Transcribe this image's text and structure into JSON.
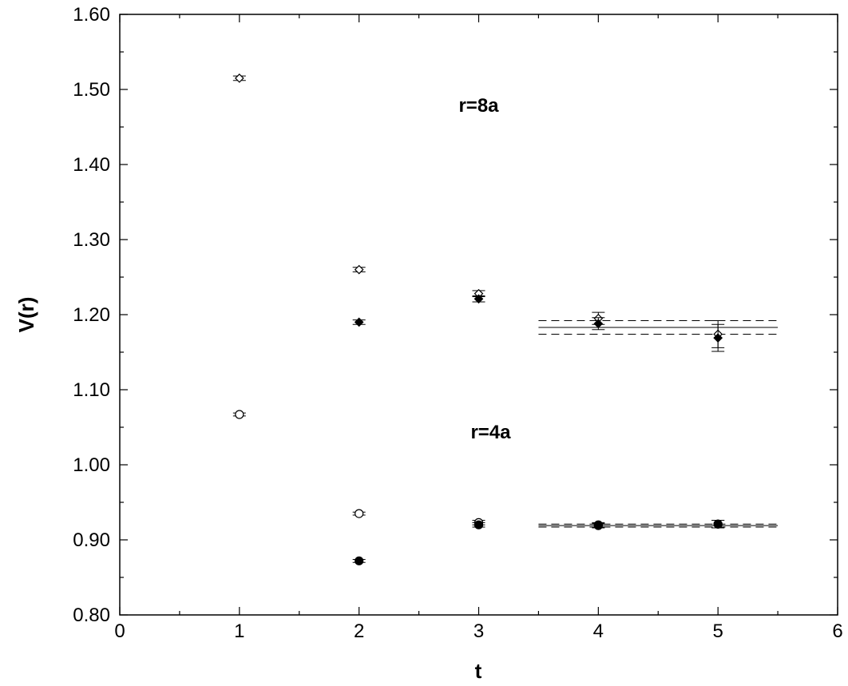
{
  "chart_data": {
    "type": "scatter",
    "title": "",
    "xlabel": "t",
    "ylabel": "V(r)",
    "xlim": [
      0,
      6
    ],
    "ylim": [
      0.8,
      1.6
    ],
    "x_ticks": [
      "0",
      "1",
      "2",
      "3",
      "4",
      "5",
      "6"
    ],
    "y_ticks": [
      "0.80",
      "0.90",
      "1.00",
      "1.10",
      "1.20",
      "1.30",
      "1.40",
      "1.50",
      "1.60"
    ],
    "grid": false,
    "legend": "none",
    "annotations": [
      {
        "text": "r=8a",
        "x": 3.0,
        "y": 1.47
      },
      {
        "text": "r=4a",
        "x": 3.1,
        "y": 1.035
      }
    ],
    "series": [
      {
        "marker": "diamond-open",
        "points": [
          {
            "x": 1,
            "y": 1.515,
            "err": 0.003
          },
          {
            "x": 2,
            "y": 1.26,
            "err": 0.003
          },
          {
            "x": 3,
            "y": 1.228,
            "err": 0.004
          },
          {
            "x": 4,
            "y": 1.195,
            "err": 0.008
          },
          {
            "x": 5,
            "y": 1.174,
            "err": 0.018
          }
        ]
      },
      {
        "marker": "diamond-filled",
        "points": [
          {
            "x": 2,
            "y": 1.19,
            "err": 0.003
          },
          {
            "x": 3,
            "y": 1.221,
            "err": 0.004
          },
          {
            "x": 4,
            "y": 1.188,
            "err": 0.008
          },
          {
            "x": 5,
            "y": 1.169,
            "err": 0.018
          }
        ]
      },
      {
        "marker": "circle-open",
        "points": [
          {
            "x": 1,
            "y": 1.067,
            "err": 0.002
          },
          {
            "x": 2,
            "y": 0.935,
            "err": 0.002
          },
          {
            "x": 3,
            "y": 0.923,
            "err": 0.003
          },
          {
            "x": 4,
            "y": 0.92,
            "err": 0.003
          },
          {
            "x": 5,
            "y": 0.921,
            "err": 0.005
          }
        ]
      },
      {
        "marker": "circle-filled",
        "points": [
          {
            "x": 2,
            "y": 0.872,
            "err": 0.002
          },
          {
            "x": 3,
            "y": 0.92,
            "err": 0.003
          },
          {
            "x": 4,
            "y": 0.919,
            "err": 0.003
          },
          {
            "x": 5,
            "y": 0.921,
            "err": 0.005
          }
        ]
      }
    ],
    "fits": [
      {
        "x_range": [
          3.5,
          5.5
        ],
        "y": 1.183,
        "y_lower": 1.174,
        "y_upper": 1.192
      },
      {
        "x_range": [
          3.5,
          5.5
        ],
        "y": 0.919,
        "y_lower": 0.917,
        "y_upper": 0.921
      }
    ]
  }
}
